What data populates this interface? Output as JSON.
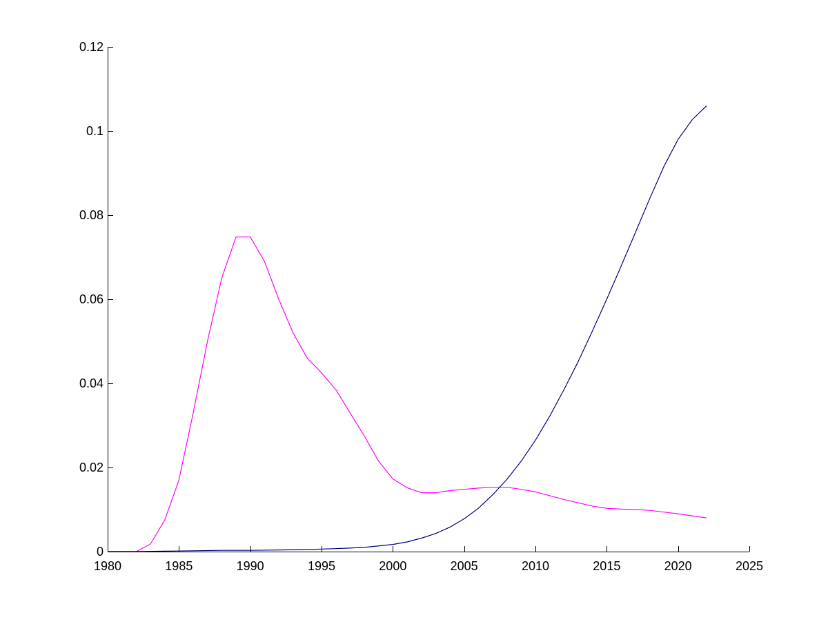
{
  "chart_data": {
    "type": "line",
    "title": "",
    "xlabel": "",
    "ylabel": "",
    "xlim": [
      1980,
      2025
    ],
    "ylim": [
      0,
      0.12
    ],
    "x_ticks": [
      {
        "value": 1980,
        "label": "1980"
      },
      {
        "value": 1985,
        "label": "1985"
      },
      {
        "value": 1990,
        "label": "1990"
      },
      {
        "value": 1995,
        "label": "1995"
      },
      {
        "value": 2000,
        "label": "2000"
      },
      {
        "value": 2005,
        "label": "2005"
      },
      {
        "value": 2010,
        "label": "2010"
      },
      {
        "value": 2015,
        "label": "2015"
      },
      {
        "value": 2020,
        "label": "2020"
      },
      {
        "value": 2025,
        "label": "2025"
      }
    ],
    "y_ticks": [
      {
        "value": 0,
        "label": "0"
      },
      {
        "value": 0.02,
        "label": "0.02"
      },
      {
        "value": 0.04,
        "label": "0.04"
      },
      {
        "value": 0.06,
        "label": "0.06"
      },
      {
        "value": 0.08,
        "label": "0.08"
      },
      {
        "value": 0.1,
        "label": "0.1"
      },
      {
        "value": 0.12,
        "label": "0.12"
      }
    ],
    "grid": false,
    "legend": "none",
    "series": [
      {
        "color": "#ff00ff",
        "x": [
          1980,
          1981,
          1982,
          1983,
          1984,
          1985,
          1986,
          1987,
          1988,
          1989,
          1990,
          1991,
          1992,
          1993,
          1994,
          1995,
          1996,
          1997,
          1998,
          1999,
          2000,
          2001,
          2002,
          2003,
          2004,
          2005,
          2006,
          2007,
          2008,
          2009,
          2010,
          2011,
          2012,
          2013,
          2014,
          2015,
          2016,
          2017,
          2018,
          2019,
          2020,
          2021,
          2022
        ],
        "values": [
          0,
          0,
          0,
          0.0018,
          0.0075,
          0.017,
          0.033,
          0.05,
          0.065,
          0.0748,
          0.0748,
          0.069,
          0.06,
          0.052,
          0.046,
          0.0425,
          0.0385,
          0.033,
          0.0275,
          0.0215,
          0.0173,
          0.0152,
          0.014,
          0.014,
          0.0145,
          0.0148,
          0.0151,
          0.0153,
          0.0153,
          0.0148,
          0.0142,
          0.0133,
          0.0124,
          0.0116,
          0.0108,
          0.0103,
          0.0101,
          0.01,
          0.0098,
          0.0094,
          0.009,
          0.0085,
          0.008
        ]
      },
      {
        "color": "#000080",
        "x": [
          1980,
          1982,
          1984,
          1986,
          1988,
          1990,
          1992,
          1994,
          1996,
          1998,
          2000,
          2001,
          2002,
          2003,
          2004,
          2005,
          2006,
          2007,
          2008,
          2009,
          2010,
          2011,
          2012,
          2013,
          2014,
          2015,
          2016,
          2017,
          2018,
          2019,
          2020,
          2021,
          2022
        ],
        "values": [
          0,
          0,
          0.0001,
          0.0002,
          0.0003,
          0.0003,
          0.0004,
          0.0005,
          0.0007,
          0.001,
          0.0017,
          0.0023,
          0.0032,
          0.0043,
          0.0058,
          0.0078,
          0.0103,
          0.0135,
          0.0172,
          0.0215,
          0.0265,
          0.0322,
          0.0385,
          0.0452,
          0.0525,
          0.06,
          0.0678,
          0.0758,
          0.0838,
          0.0915,
          0.098,
          0.1027,
          0.106
        ]
      }
    ]
  }
}
